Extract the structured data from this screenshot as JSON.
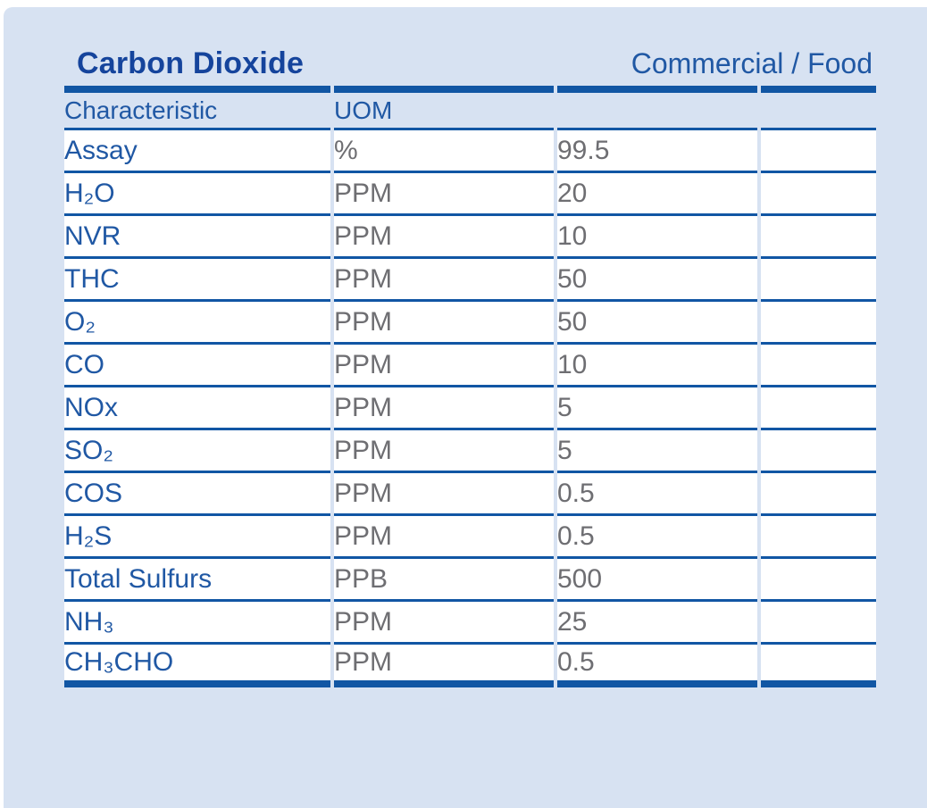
{
  "panel": {
    "title": "Carbon Dioxide",
    "grade": "Commercial / Food"
  },
  "table": {
    "headers": [
      "Characteristic",
      "UOM",
      "",
      ""
    ],
    "rows": [
      {
        "characteristic": "Assay",
        "uom": "%",
        "value": "99.5"
      },
      {
        "characteristic": "H₂O",
        "uom": "PPM",
        "value": "20"
      },
      {
        "characteristic": "NVR",
        "uom": "PPM",
        "value": "10"
      },
      {
        "characteristic": "THC",
        "uom": "PPM",
        "value": "50"
      },
      {
        "characteristic": "O₂",
        "uom": "PPM",
        "value": "50"
      },
      {
        "characteristic": "CO",
        "uom": "PPM",
        "value": "10"
      },
      {
        "characteristic": "NOx",
        "uom": "PPM",
        "value": "5"
      },
      {
        "characteristic": "SO₂",
        "uom": "PPM",
        "value": "5"
      },
      {
        "characteristic": "COS",
        "uom": "PPM",
        "value": "0.5"
      },
      {
        "characteristic": "H₂S",
        "uom": "PPM",
        "value": "0.5"
      },
      {
        "characteristic": "Total Sulfurs",
        "uom": "PPB",
        "value": "500"
      },
      {
        "characteristic": "NH₃",
        "uom": "PPM",
        "value": "25"
      },
      {
        "characteristic": "CH₃CHO",
        "uom": "PPM",
        "value": "0.5"
      }
    ]
  },
  "colors": {
    "bg": "#d7e2f2",
    "line": "#1156a4",
    "title": "#15449c",
    "label": "#2058a4",
    "value": "#6e6e72",
    "row-bg": "#ffffff"
  }
}
